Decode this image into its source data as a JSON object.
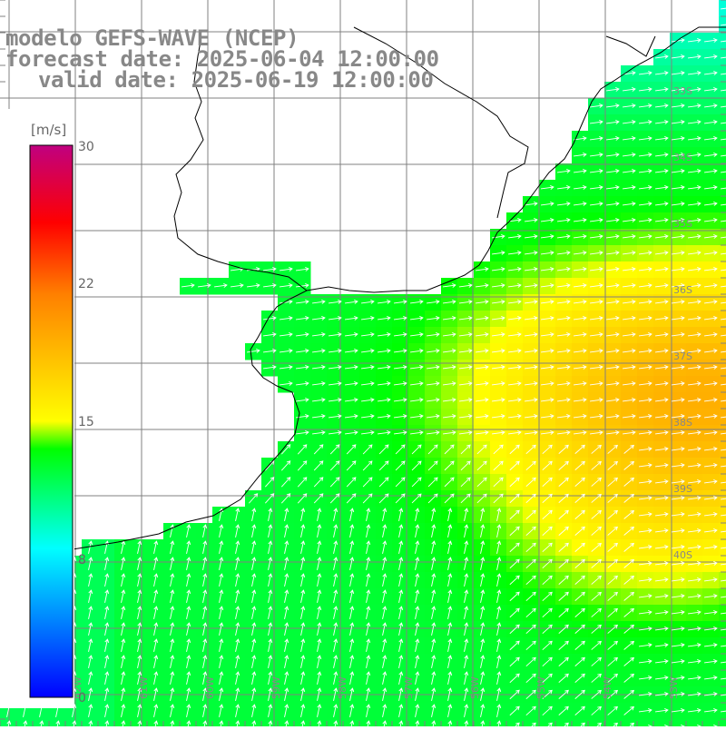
{
  "header": {
    "title": "modelo GEFS-WAVE (NCEP)",
    "forecast_line": "forecast date: 2025-06-04 12:00:00",
    "valid_line": "valid date: 2025-06-19 12:00:00"
  },
  "colorbar": {
    "unit": "[m/s]",
    "ticks": [
      "30",
      "22",
      "15",
      "8",
      "0"
    ],
    "min": 0,
    "max": 30,
    "colors": [
      "#0000ff",
      "#00ffff",
      "#00ff00",
      "#ffff00",
      "#ff8000",
      "#ff0000",
      "#c00080"
    ]
  },
  "map": {
    "lat_labels": [
      "33S",
      "34S",
      "35S",
      "36S",
      "37S",
      "38S",
      "39S",
      "40S"
    ],
    "lon_labels": [
      "63W",
      "62W",
      "61W",
      "60W",
      "59W",
      "58W",
      "57W",
      "56W",
      "55W",
      "54W",
      "53W"
    ],
    "colors": {
      "land": "#ffffff",
      "coast": "#000000",
      "grid": "#808080",
      "vector": "#ffffff",
      "label": "#888888"
    }
  }
}
